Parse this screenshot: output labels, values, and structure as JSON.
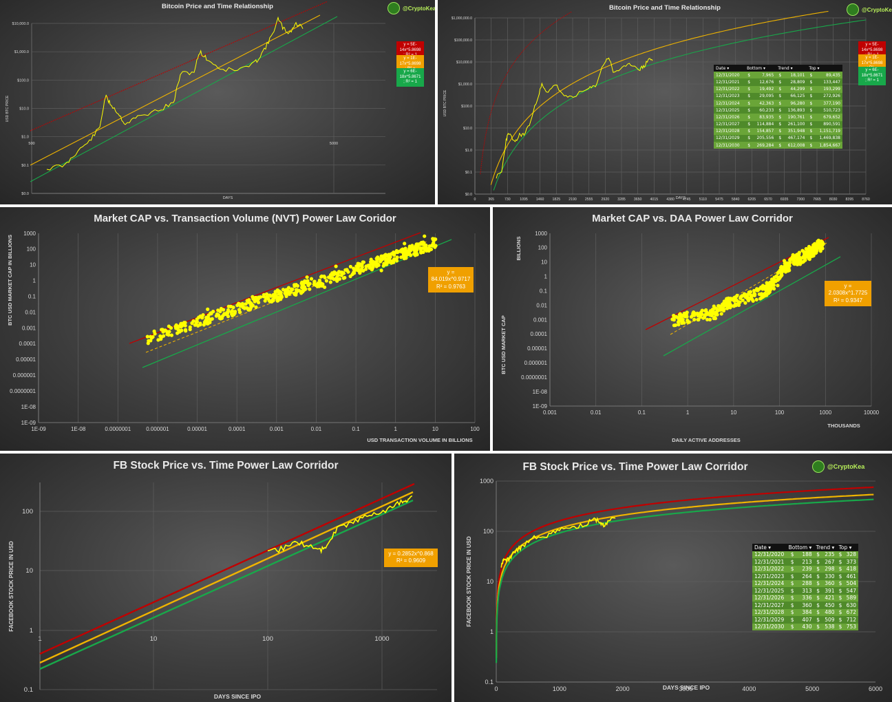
{
  "colors": {
    "top": "#c00000",
    "trend": "#f0b400",
    "bottom": "#18a84a",
    "price": "#ffff00",
    "grid": "#5e5e5e",
    "text": "#d8d8d8",
    "eq_top": "#c00000",
    "eq_trend": "#f0a000",
    "eq_bottom": "#18a84a"
  },
  "logo": {
    "text": "@CryptoKea",
    "icon": "logo-icon"
  },
  "table_headers": [
    "Date",
    "Bottom",
    "Trend",
    "Top"
  ],
  "chart_data": [
    {
      "id": "p1",
      "type": "line",
      "title": "Bitcoin Price and Time Relationship",
      "xlabel": "DAYS",
      "ylabel": "USD BTC PRICE",
      "x_scale": "log",
      "y_scale": "log",
      "y_ticks": [
        "$0.0",
        "$0.1",
        "$1.0",
        "$10.0",
        "$100.0",
        "$1,000.0",
        "$10,000.0"
      ],
      "x_ticks": [
        "500",
        "5000"
      ],
      "equations": [
        "y = 5E-14x^5.8698 ; R² = 1",
        "y = 1E-17x^5.8698 ; R² = 0.9347",
        "y = 6E-18x^5.8671 ; R² = 1"
      ]
    },
    {
      "id": "p2",
      "type": "line",
      "title": "Bitcoin Price and Time Relationship",
      "xlabel": "DAYS",
      "ylabel": "USD BTC PRICE",
      "x_scale": "linear",
      "y_scale": "log",
      "xlim": [
        0,
        8760
      ],
      "x_ticks": [
        "0",
        "365",
        "730",
        "1095",
        "1460",
        "1825",
        "2190",
        "2555",
        "2920",
        "3285",
        "3650",
        "4015",
        "4380",
        "4745",
        "5110",
        "5475",
        "5840",
        "6205",
        "6570",
        "6935",
        "7300",
        "7665",
        "8030",
        "8395",
        "8760"
      ],
      "y_ticks": [
        "$0.0",
        "$0.1",
        "$1.0",
        "$10.0",
        "$100.0",
        "$1,000.0",
        "$10,000.0",
        "$100,000.0",
        "$1,000,000.0"
      ],
      "equations": [
        "y = 5E-14x^5.8698 ; R² = 1",
        "y = 1E-17x^5.8698 ; R² = 0.9347",
        "y = 6E-18x^5.8671 ; R² = 1"
      ],
      "table": [
        [
          "12/31/2020",
          "$",
          "7,965",
          "$",
          "18,101",
          "$",
          "89,435"
        ],
        [
          "12/31/2021",
          "$",
          "12,676",
          "$",
          "28,809",
          "$",
          "133,447"
        ],
        [
          "12/31/2022",
          "$",
          "19,492",
          "$",
          "44,299",
          "$",
          "193,299"
        ],
        [
          "12/31/2023",
          "$",
          "29,095",
          "$",
          "66,125",
          "$",
          "272,926"
        ],
        [
          "12/31/2024",
          "$",
          "42,363",
          "$",
          "96,280",
          "$",
          "377,190"
        ],
        [
          "12/31/2025",
          "$",
          "60,233",
          "$",
          "136,893",
          "$",
          "510,723"
        ],
        [
          "12/31/2026",
          "$",
          "83,935",
          "$",
          "190,761",
          "$",
          "679,652"
        ],
        [
          "12/31/2027",
          "$",
          "114,884",
          "$",
          "261,100",
          "$",
          "890,591"
        ],
        [
          "12/31/2028",
          "$",
          "154,857",
          "$",
          "351,948",
          "$",
          "1,151,719"
        ],
        [
          "12/31/2029",
          "$",
          "205,556",
          "$",
          "467,174",
          "$",
          "1,469,838"
        ],
        [
          "12/31/2030",
          "$",
          "269,284",
          "$",
          "612,008",
          "$",
          "1,854,667"
        ]
      ]
    },
    {
      "id": "p3",
      "type": "scatter",
      "title": "Market CAP vs. Transaction Volume (NVT) Power Law Coridor",
      "xlabel": "USD TRANSACTION VOLUME IN BILLIONS",
      "ylabel": "BTC USD MARKET CAP IN BILLIONS",
      "x_scale": "log",
      "y_scale": "log",
      "x_ticks": [
        "1E-09",
        "1E-08",
        "0.0000001",
        "0.000001",
        "0.00001",
        "0.0001",
        "0.001",
        "0.01",
        "0.1",
        "1",
        "10",
        "100"
      ],
      "y_ticks": [
        "1E-09",
        "1E-08",
        "0.0000001",
        "0.000001",
        "0.00001",
        "0.0001",
        "0.001",
        "0.01",
        "0.1",
        "1",
        "10",
        "100",
        "1000"
      ],
      "equation": [
        "y = 84.019x^0.9717",
        "R² = 0.9763"
      ]
    },
    {
      "id": "p4",
      "type": "scatter",
      "title": "Market CAP vs. DAA Power Law Corridor",
      "xlabel": "DAILY ACTIVE ADDRESSES",
      "xunit": "THOUSANDS",
      "ylabel": "BTC USD MARKET CAP",
      "yunit": "BILLIONS",
      "x_scale": "log",
      "y_scale": "log",
      "x_ticks": [
        "0.001",
        "0.01",
        "0.1",
        "1",
        "10",
        "100",
        "1000",
        "10000"
      ],
      "y_ticks": [
        "1E-09",
        "1E-08",
        "0.0000001",
        "0.000001",
        "0.00001",
        "0.0001",
        "0.001",
        "0.01",
        "0.1",
        "1",
        "10",
        "100",
        "1000"
      ],
      "equation": [
        "y = 2.0308x^1.7725",
        "R² = 0.9347"
      ]
    },
    {
      "id": "p5",
      "type": "line",
      "title": "FB Stock Price vs. Time Power Law Corridor",
      "xlabel": "DAYS SINCE IPO",
      "ylabel": "FACEBOOK STOCK PRICE IN USD",
      "x_scale": "log",
      "y_scale": "log",
      "x_ticks": [
        "1",
        "10",
        "100",
        "1000"
      ],
      "y_ticks": [
        "0.1",
        "1",
        "10",
        "100"
      ],
      "equation": [
        "y = 0.2852x^0.868",
        "R² = 0.9609"
      ]
    },
    {
      "id": "p6",
      "type": "line",
      "title": "FB Stock Price vs. Time Power Law Corridor",
      "xlabel": "DAYS SINCE IPO",
      "ylabel": "FACEBOOK STOCK PRICE IN USD",
      "x_scale": "linear",
      "y_scale": "log",
      "xlim": [
        0,
        6000
      ],
      "x_ticks": [
        "0",
        "1000",
        "2000",
        "3000",
        "4000",
        "5000",
        "6000"
      ],
      "y_ticks": [
        "0.1",
        "1",
        "10",
        "100",
        "1000"
      ],
      "table": [
        [
          "12/31/2020",
          "$",
          "188",
          "$",
          "235",
          "$",
          "328"
        ],
        [
          "12/31/2021",
          "$",
          "213",
          "$",
          "267",
          "$",
          "373"
        ],
        [
          "12/31/2022",
          "$",
          "239",
          "$",
          "298",
          "$",
          "418"
        ],
        [
          "12/31/2023",
          "$",
          "264",
          "$",
          "330",
          "$",
          "461"
        ],
        [
          "12/31/2024",
          "$",
          "288",
          "$",
          "360",
          "$",
          "504"
        ],
        [
          "12/31/2025",
          "$",
          "313",
          "$",
          "391",
          "$",
          "547"
        ],
        [
          "12/31/2026",
          "$",
          "336",
          "$",
          "421",
          "$",
          "589"
        ],
        [
          "12/31/2027",
          "$",
          "360",
          "$",
          "450",
          "$",
          "630"
        ],
        [
          "12/31/2028",
          "$",
          "384",
          "$",
          "480",
          "$",
          "672"
        ],
        [
          "12/31/2029",
          "$",
          "407",
          "$",
          "509",
          "$",
          "712"
        ],
        [
          "12/31/2030",
          "$",
          "430",
          "$",
          "538",
          "$",
          "753"
        ]
      ]
    }
  ]
}
